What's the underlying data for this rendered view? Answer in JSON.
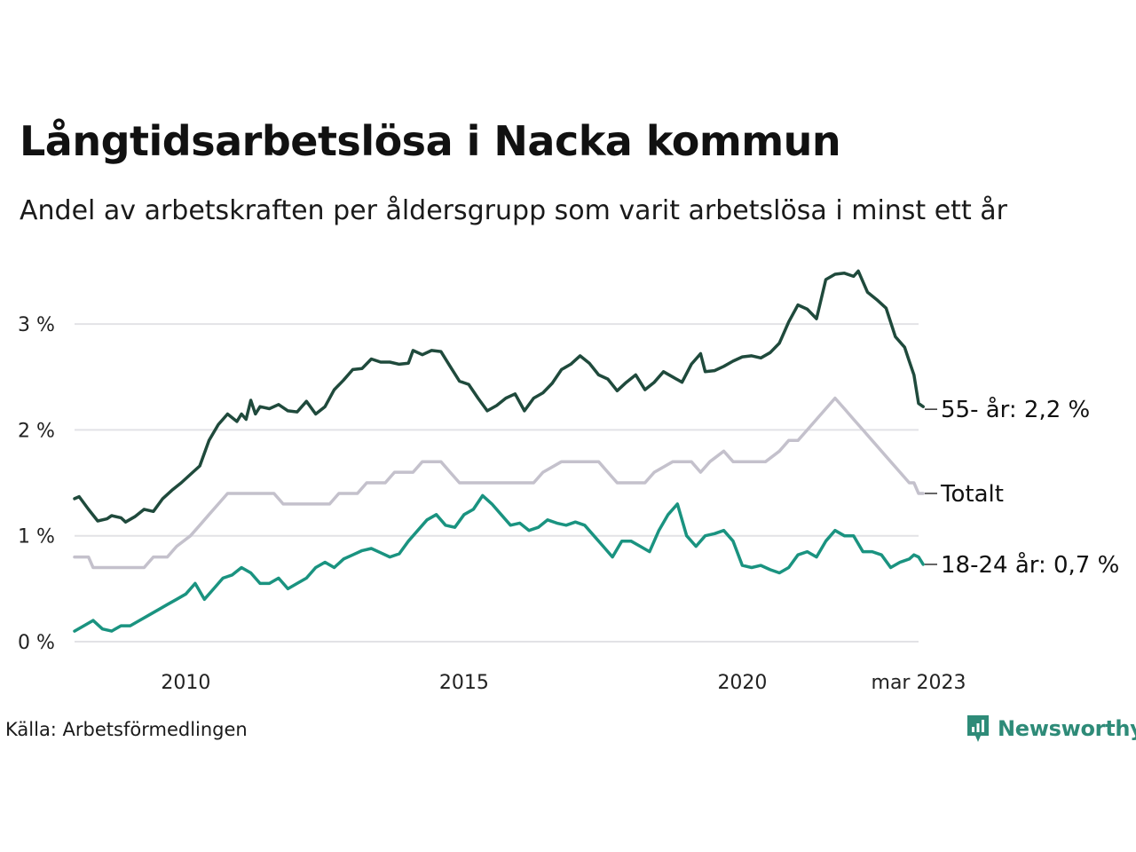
{
  "header": {
    "title": "Långtidsarbetslösa i Nacka kommun",
    "subtitle": "Andel av arbetskraften per åldersgrupp som varit arbetslösa i minst ett år"
  },
  "footer": {
    "source": "Källa: Arbetsförmedlingen",
    "brand": "Newsworthy",
    "brand_icon": "newsworthy-logo-icon"
  },
  "colors": {
    "series_55": "#1f4a3c",
    "series_total": "#c4c1cc",
    "series_18_24": "#1a9380",
    "grid": "#e2e2e6",
    "brand": "#2e8b78"
  },
  "chart_data": {
    "type": "line",
    "title": "Långtidsarbetslösa i Nacka kommun",
    "subtitle": "Andel av arbetskraften per åldersgrupp som varit arbetslösa i minst ett år",
    "xlabel": "",
    "ylabel": "",
    "xlim": [
      "2008-01",
      "2023-03"
    ],
    "ylim": [
      0,
      3.6
    ],
    "yticks": [
      0,
      1,
      2,
      3
    ],
    "ytick_labels": [
      "0 %",
      "1 %",
      "2 %",
      "3 %"
    ],
    "xticks": [
      "2010-01",
      "2015-01",
      "2020-01",
      "2023-03"
    ],
    "xtick_labels": [
      "2010",
      "2015",
      "2020",
      "mar 2023"
    ],
    "grid": true,
    "legend": "direct labels at line ends (right)",
    "series": [
      {
        "name": "55- år",
        "end_label": "55- år: 2,2 %",
        "color": "#1f4a3c",
        "points": [
          [
            "2008-01",
            1.35
          ],
          [
            "2008-02",
            1.37
          ],
          [
            "2008-04",
            1.25
          ],
          [
            "2008-06",
            1.14
          ],
          [
            "2008-08",
            1.16
          ],
          [
            "2008-09",
            1.19
          ],
          [
            "2008-11",
            1.17
          ],
          [
            "2008-12",
            1.13
          ],
          [
            "2009-02",
            1.18
          ],
          [
            "2009-04",
            1.25
          ],
          [
            "2009-06",
            1.23
          ],
          [
            "2009-08",
            1.35
          ],
          [
            "2009-10",
            1.43
          ],
          [
            "2009-12",
            1.5
          ],
          [
            "2010-02",
            1.58
          ],
          [
            "2010-04",
            1.66
          ],
          [
            "2010-06",
            1.9
          ],
          [
            "2010-08",
            2.05
          ],
          [
            "2010-10",
            2.15
          ],
          [
            "2010-12",
            2.08
          ],
          [
            "2011-01",
            2.15
          ],
          [
            "2011-02",
            2.1
          ],
          [
            "2011-03",
            2.28
          ],
          [
            "2011-04",
            2.15
          ],
          [
            "2011-05",
            2.22
          ],
          [
            "2011-07",
            2.2
          ],
          [
            "2011-09",
            2.24
          ],
          [
            "2011-11",
            2.18
          ],
          [
            "2012-01",
            2.17
          ],
          [
            "2012-03",
            2.27
          ],
          [
            "2012-05",
            2.15
          ],
          [
            "2012-07",
            2.22
          ],
          [
            "2012-09",
            2.38
          ],
          [
            "2012-11",
            2.47
          ],
          [
            "2013-01",
            2.57
          ],
          [
            "2013-03",
            2.58
          ],
          [
            "2013-05",
            2.67
          ],
          [
            "2013-07",
            2.64
          ],
          [
            "2013-09",
            2.64
          ],
          [
            "2013-11",
            2.62
          ],
          [
            "2014-01",
            2.63
          ],
          [
            "2014-02",
            2.75
          ],
          [
            "2014-04",
            2.71
          ],
          [
            "2014-06",
            2.75
          ],
          [
            "2014-08",
            2.74
          ],
          [
            "2014-10",
            2.6
          ],
          [
            "2014-12",
            2.46
          ],
          [
            "2015-02",
            2.43
          ],
          [
            "2015-04",
            2.3
          ],
          [
            "2015-06",
            2.18
          ],
          [
            "2015-08",
            2.23
          ],
          [
            "2015-10",
            2.3
          ],
          [
            "2015-12",
            2.34
          ],
          [
            "2016-02",
            2.18
          ],
          [
            "2016-04",
            2.3
          ],
          [
            "2016-06",
            2.35
          ],
          [
            "2016-08",
            2.44
          ],
          [
            "2016-10",
            2.57
          ],
          [
            "2016-12",
            2.62
          ],
          [
            "2017-02",
            2.7
          ],
          [
            "2017-04",
            2.63
          ],
          [
            "2017-06",
            2.52
          ],
          [
            "2017-08",
            2.48
          ],
          [
            "2017-10",
            2.37
          ],
          [
            "2017-12",
            2.45
          ],
          [
            "2018-02",
            2.52
          ],
          [
            "2018-04",
            2.38
          ],
          [
            "2018-06",
            2.45
          ],
          [
            "2018-08",
            2.55
          ],
          [
            "2018-10",
            2.5
          ],
          [
            "2018-12",
            2.45
          ],
          [
            "2019-02",
            2.62
          ],
          [
            "2019-04",
            2.72
          ],
          [
            "2019-05",
            2.55
          ],
          [
            "2019-07",
            2.56
          ],
          [
            "2019-09",
            2.6
          ],
          [
            "2019-11",
            2.65
          ],
          [
            "2020-01",
            2.69
          ],
          [
            "2020-03",
            2.7
          ],
          [
            "2020-05",
            2.68
          ],
          [
            "2020-07",
            2.73
          ],
          [
            "2020-09",
            2.82
          ],
          [
            "2020-11",
            3.02
          ],
          [
            "2021-01",
            3.18
          ],
          [
            "2021-03",
            3.14
          ],
          [
            "2021-05",
            3.05
          ],
          [
            "2021-07",
            3.42
          ],
          [
            "2021-09",
            3.47
          ],
          [
            "2021-11",
            3.48
          ],
          [
            "2022-01",
            3.45
          ],
          [
            "2022-02",
            3.5
          ],
          [
            "2022-04",
            3.3
          ],
          [
            "2022-06",
            3.23
          ],
          [
            "2022-08",
            3.15
          ],
          [
            "2022-10",
            2.88
          ],
          [
            "2022-12",
            2.78
          ],
          [
            "2023-01",
            2.65
          ],
          [
            "2023-02",
            2.52
          ],
          [
            "2023-03",
            2.25
          ],
          [
            "2023-04",
            2.22
          ]
        ]
      },
      {
        "name": "Totalt",
        "end_label": "Totalt",
        "color": "#c4c1cc",
        "points": [
          [
            "2008-01",
            0.8
          ],
          [
            "2008-04",
            0.8
          ],
          [
            "2008-05",
            0.7
          ],
          [
            "2009-04",
            0.7
          ],
          [
            "2009-06",
            0.8
          ],
          [
            "2009-09",
            0.8
          ],
          [
            "2009-11",
            0.9
          ],
          [
            "2010-02",
            1.0
          ],
          [
            "2010-04",
            1.1
          ],
          [
            "2010-06",
            1.2
          ],
          [
            "2010-08",
            1.3
          ],
          [
            "2010-10",
            1.4
          ],
          [
            "2011-08",
            1.4
          ],
          [
            "2011-10",
            1.3
          ],
          [
            "2012-08",
            1.3
          ],
          [
            "2012-10",
            1.4
          ],
          [
            "2013-02",
            1.4
          ],
          [
            "2013-04",
            1.5
          ],
          [
            "2013-08",
            1.5
          ],
          [
            "2013-10",
            1.6
          ],
          [
            "2014-02",
            1.6
          ],
          [
            "2014-04",
            1.7
          ],
          [
            "2014-08",
            1.7
          ],
          [
            "2014-10",
            1.6
          ],
          [
            "2014-12",
            1.5
          ],
          [
            "2016-04",
            1.5
          ],
          [
            "2016-06",
            1.6
          ],
          [
            "2016-10",
            1.7
          ],
          [
            "2017-06",
            1.7
          ],
          [
            "2017-08",
            1.6
          ],
          [
            "2017-10",
            1.5
          ],
          [
            "2018-04",
            1.5
          ],
          [
            "2018-06",
            1.6
          ],
          [
            "2018-10",
            1.7
          ],
          [
            "2019-02",
            1.7
          ],
          [
            "2019-04",
            1.6
          ],
          [
            "2019-06",
            1.7
          ],
          [
            "2019-09",
            1.8
          ],
          [
            "2019-11",
            1.7
          ],
          [
            "2020-06",
            1.7
          ],
          [
            "2020-09",
            1.8
          ],
          [
            "2020-11",
            1.9
          ],
          [
            "2021-01",
            1.9
          ],
          [
            "2021-03",
            2.0
          ],
          [
            "2021-07",
            2.2
          ],
          [
            "2021-09",
            2.3
          ],
          [
            "2021-11",
            2.2
          ],
          [
            "2022-01",
            2.1
          ],
          [
            "2022-03",
            2.0
          ],
          [
            "2022-05",
            1.9
          ],
          [
            "2022-07",
            1.8
          ],
          [
            "2022-09",
            1.7
          ],
          [
            "2022-11",
            1.6
          ],
          [
            "2023-01",
            1.5
          ],
          [
            "2023-02",
            1.5
          ],
          [
            "2023-03",
            1.4
          ],
          [
            "2023-04",
            1.4
          ]
        ]
      },
      {
        "name": "18-24 år",
        "end_label": "18-24 år: 0,7 %",
        "color": "#1a9380",
        "points": [
          [
            "2008-01",
            0.1
          ],
          [
            "2008-03",
            0.15
          ],
          [
            "2008-05",
            0.2
          ],
          [
            "2008-07",
            0.12
          ],
          [
            "2008-09",
            0.1
          ],
          [
            "2008-11",
            0.15
          ],
          [
            "2009-01",
            0.15
          ],
          [
            "2009-03",
            0.2
          ],
          [
            "2009-05",
            0.25
          ],
          [
            "2009-07",
            0.3
          ],
          [
            "2009-09",
            0.35
          ],
          [
            "2009-11",
            0.4
          ],
          [
            "2010-01",
            0.45
          ],
          [
            "2010-03",
            0.55
          ],
          [
            "2010-05",
            0.4
          ],
          [
            "2010-07",
            0.5
          ],
          [
            "2010-09",
            0.6
          ],
          [
            "2010-11",
            0.63
          ],
          [
            "2011-01",
            0.7
          ],
          [
            "2011-03",
            0.65
          ],
          [
            "2011-05",
            0.55
          ],
          [
            "2011-07",
            0.55
          ],
          [
            "2011-09",
            0.6
          ],
          [
            "2011-11",
            0.5
          ],
          [
            "2012-01",
            0.55
          ],
          [
            "2012-03",
            0.6
          ],
          [
            "2012-05",
            0.7
          ],
          [
            "2012-07",
            0.75
          ],
          [
            "2012-09",
            0.7
          ],
          [
            "2012-11",
            0.78
          ],
          [
            "2013-01",
            0.82
          ],
          [
            "2013-03",
            0.86
          ],
          [
            "2013-05",
            0.88
          ],
          [
            "2013-07",
            0.84
          ],
          [
            "2013-09",
            0.8
          ],
          [
            "2013-11",
            0.83
          ],
          [
            "2014-01",
            0.95
          ],
          [
            "2014-03",
            1.05
          ],
          [
            "2014-05",
            1.15
          ],
          [
            "2014-07",
            1.2
          ],
          [
            "2014-09",
            1.1
          ],
          [
            "2014-11",
            1.08
          ],
          [
            "2015-01",
            1.2
          ],
          [
            "2015-03",
            1.25
          ],
          [
            "2015-05",
            1.38
          ],
          [
            "2015-07",
            1.3
          ],
          [
            "2015-09",
            1.2
          ],
          [
            "2015-11",
            1.1
          ],
          [
            "2016-01",
            1.12
          ],
          [
            "2016-03",
            1.05
          ],
          [
            "2016-05",
            1.08
          ],
          [
            "2016-07",
            1.15
          ],
          [
            "2016-09",
            1.12
          ],
          [
            "2016-11",
            1.1
          ],
          [
            "2017-01",
            1.13
          ],
          [
            "2017-03",
            1.1
          ],
          [
            "2017-05",
            1.0
          ],
          [
            "2017-07",
            0.9
          ],
          [
            "2017-09",
            0.8
          ],
          [
            "2017-11",
            0.95
          ],
          [
            "2018-01",
            0.95
          ],
          [
            "2018-03",
            0.9
          ],
          [
            "2018-05",
            0.85
          ],
          [
            "2018-07",
            1.05
          ],
          [
            "2018-09",
            1.2
          ],
          [
            "2018-11",
            1.3
          ],
          [
            "2019-01",
            1.0
          ],
          [
            "2019-03",
            0.9
          ],
          [
            "2019-05",
            1.0
          ],
          [
            "2019-07",
            1.02
          ],
          [
            "2019-09",
            1.05
          ],
          [
            "2019-11",
            0.95
          ],
          [
            "2020-01",
            0.72
          ],
          [
            "2020-03",
            0.7
          ],
          [
            "2020-05",
            0.72
          ],
          [
            "2020-07",
            0.68
          ],
          [
            "2020-09",
            0.65
          ],
          [
            "2020-11",
            0.7
          ],
          [
            "2021-01",
            0.82
          ],
          [
            "2021-03",
            0.85
          ],
          [
            "2021-05",
            0.8
          ],
          [
            "2021-07",
            0.95
          ],
          [
            "2021-09",
            1.05
          ],
          [
            "2021-11",
            1.0
          ],
          [
            "2022-01",
            1.0
          ],
          [
            "2022-03",
            0.85
          ],
          [
            "2022-05",
            0.85
          ],
          [
            "2022-07",
            0.82
          ],
          [
            "2022-09",
            0.7
          ],
          [
            "2022-11",
            0.75
          ],
          [
            "2023-01",
            0.78
          ],
          [
            "2023-02",
            0.82
          ],
          [
            "2023-03",
            0.8
          ],
          [
            "2023-04",
            0.73
          ]
        ]
      }
    ]
  }
}
